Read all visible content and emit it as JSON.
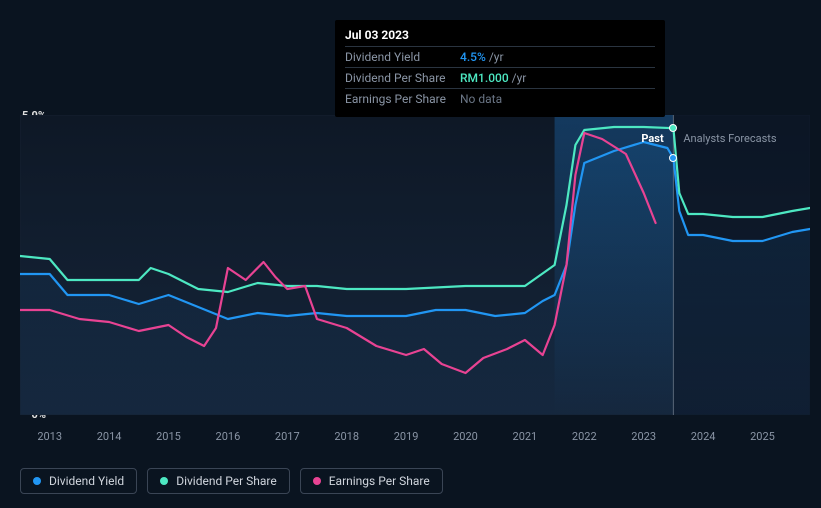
{
  "tooltip": {
    "date": "Jul 03 2023",
    "rows": [
      {
        "label": "Dividend Yield",
        "value": "4.5%",
        "unit": "/yr",
        "color": "#2196f3",
        "nodata": false
      },
      {
        "label": "Dividend Per Share",
        "value": "RM1.000",
        "unit": "/yr",
        "color": "#4de8c2",
        "nodata": false
      },
      {
        "label": "Earnings Per Share",
        "value": "No data",
        "unit": "",
        "color": "#6a7585",
        "nodata": true
      }
    ]
  },
  "chart": {
    "background": "#0a1420",
    "plot_bg_gradient_top": "#0e1826",
    "plot_bg_gradient_bottom": "#15253a",
    "ylim": [
      0,
      5
    ],
    "y_ticks": [
      {
        "value": 5,
        "label": "5.0%"
      },
      {
        "value": 0,
        "label": "0%"
      }
    ],
    "x_start": 2012.5,
    "x_end": 2025.8,
    "x_ticks": [
      2013,
      2014,
      2015,
      2016,
      2017,
      2018,
      2019,
      2020,
      2021,
      2022,
      2023,
      2024,
      2025
    ],
    "now_x": 2023.5,
    "past_label": "Past",
    "forecast_label": "Analysts Forecasts",
    "forecast_bg": "rgba(30,50,75,0.4)",
    "highlight_gradient_start": "rgba(30,120,200,0.35)",
    "highlight_gradient_end": "rgba(30,120,200,0.0)",
    "border_color": "#152030",
    "series": [
      {
        "name": "Dividend Yield",
        "color": "#2196f3",
        "fill": "rgba(33,150,243,0.06)",
        "width": 2.2,
        "points": [
          [
            2012.5,
            2.35
          ],
          [
            2013,
            2.35
          ],
          [
            2013.3,
            2.0
          ],
          [
            2014,
            2.0
          ],
          [
            2014.5,
            1.85
          ],
          [
            2015,
            2.0
          ],
          [
            2015.5,
            1.8
          ],
          [
            2016,
            1.6
          ],
          [
            2016.5,
            1.7
          ],
          [
            2017,
            1.65
          ],
          [
            2017.5,
            1.7
          ],
          [
            2018,
            1.65
          ],
          [
            2019,
            1.65
          ],
          [
            2019.5,
            1.75
          ],
          [
            2020,
            1.75
          ],
          [
            2020.5,
            1.65
          ],
          [
            2021,
            1.7
          ],
          [
            2021.3,
            1.9
          ],
          [
            2021.5,
            2.0
          ],
          [
            2021.7,
            2.5
          ],
          [
            2021.85,
            3.5
          ],
          [
            2022,
            4.2
          ],
          [
            2022.5,
            4.4
          ],
          [
            2023,
            4.55
          ],
          [
            2023.4,
            4.45
          ],
          [
            2023.5,
            4.28
          ],
          [
            2023.6,
            3.4
          ],
          [
            2023.75,
            3.0
          ],
          [
            2024,
            3.0
          ],
          [
            2024.5,
            2.9
          ],
          [
            2025,
            2.9
          ],
          [
            2025.5,
            3.05
          ],
          [
            2025.8,
            3.1
          ]
        ]
      },
      {
        "name": "Dividend Per Share",
        "color": "#4de8c2",
        "fill": "none",
        "width": 2.2,
        "points": [
          [
            2012.5,
            2.65
          ],
          [
            2013,
            2.6
          ],
          [
            2013.3,
            2.25
          ],
          [
            2014,
            2.25
          ],
          [
            2014.5,
            2.25
          ],
          [
            2014.7,
            2.45
          ],
          [
            2015,
            2.35
          ],
          [
            2015.5,
            2.1
          ],
          [
            2016,
            2.05
          ],
          [
            2016.5,
            2.2
          ],
          [
            2017,
            2.15
          ],
          [
            2017.5,
            2.15
          ],
          [
            2018,
            2.1
          ],
          [
            2019,
            2.1
          ],
          [
            2020,
            2.15
          ],
          [
            2020.5,
            2.15
          ],
          [
            2021,
            2.15
          ],
          [
            2021.5,
            2.5
          ],
          [
            2021.7,
            3.5
          ],
          [
            2021.85,
            4.5
          ],
          [
            2022,
            4.75
          ],
          [
            2022.5,
            4.8
          ],
          [
            2023,
            4.8
          ],
          [
            2023.5,
            4.78
          ],
          [
            2023.6,
            3.7
          ],
          [
            2023.75,
            3.35
          ],
          [
            2024,
            3.35
          ],
          [
            2024.5,
            3.3
          ],
          [
            2025,
            3.3
          ],
          [
            2025.5,
            3.4
          ],
          [
            2025.8,
            3.45
          ]
        ]
      },
      {
        "name": "Earnings Per Share",
        "color": "#e84393",
        "fill": "none",
        "width": 2.2,
        "points": [
          [
            2012.5,
            1.75
          ],
          [
            2013,
            1.75
          ],
          [
            2013.5,
            1.6
          ],
          [
            2014,
            1.55
          ],
          [
            2014.5,
            1.4
          ],
          [
            2015,
            1.5
          ],
          [
            2015.3,
            1.3
          ],
          [
            2015.6,
            1.15
          ],
          [
            2015.8,
            1.45
          ],
          [
            2016,
            2.45
          ],
          [
            2016.3,
            2.25
          ],
          [
            2016.6,
            2.55
          ],
          [
            2016.8,
            2.3
          ],
          [
            2017,
            2.1
          ],
          [
            2017.3,
            2.15
          ],
          [
            2017.5,
            1.6
          ],
          [
            2018,
            1.45
          ],
          [
            2018.5,
            1.15
          ],
          [
            2019,
            1.0
          ],
          [
            2019.3,
            1.1
          ],
          [
            2019.6,
            0.85
          ],
          [
            2020,
            0.7
          ],
          [
            2020.3,
            0.95
          ],
          [
            2020.7,
            1.1
          ],
          [
            2021,
            1.25
          ],
          [
            2021.3,
            1.0
          ],
          [
            2021.5,
            1.5
          ],
          [
            2021.7,
            2.5
          ],
          [
            2021.85,
            4.0
          ],
          [
            2022,
            4.7
          ],
          [
            2022.3,
            4.6
          ],
          [
            2022.7,
            4.35
          ],
          [
            2023,
            3.7
          ],
          [
            2023.2,
            3.2
          ]
        ]
      }
    ],
    "markers": [
      {
        "series": 1,
        "x": 2023.5,
        "y": 4.78,
        "color": "#4de8c2"
      },
      {
        "series": 0,
        "x": 2023.5,
        "y": 4.28,
        "color": "#2196f3"
      }
    ]
  },
  "legend": [
    {
      "label": "Dividend Yield",
      "color": "#2196f3"
    },
    {
      "label": "Dividend Per Share",
      "color": "#4de8c2"
    },
    {
      "label": "Earnings Per Share",
      "color": "#e84393"
    }
  ]
}
